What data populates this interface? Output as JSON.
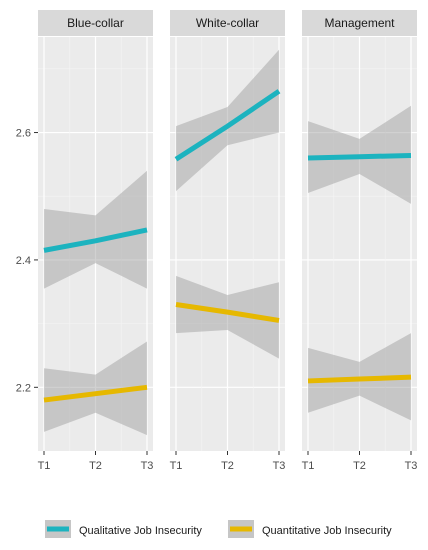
{
  "chart_data": {
    "type": "line",
    "x": [
      "T1",
      "T2",
      "T3"
    ],
    "ylim": [
      2.1,
      2.75
    ],
    "yticks": [
      2.2,
      2.4,
      2.6
    ],
    "ytick_labels": [
      "2.2",
      "2.4",
      "2.6"
    ],
    "xlabel": "",
    "ylabel": "",
    "grid": true,
    "legend_position": "bottom",
    "facets": [
      {
        "label": "Blue-collar",
        "series": [
          {
            "name": "Qualitative Job Insecurity",
            "values": [
              2.415,
              2.43,
              2.447
            ],
            "ci_lower": [
              2.355,
              2.395,
              2.355
            ],
            "ci_upper": [
              2.48,
              2.47,
              2.54
            ]
          },
          {
            "name": "Quantitative Job Insecurity",
            "values": [
              2.18,
              2.19,
              2.2
            ],
            "ci_lower": [
              2.13,
              2.16,
              2.125
            ],
            "ci_upper": [
              2.23,
              2.22,
              2.272
            ]
          }
        ]
      },
      {
        "label": "White-collar",
        "series": [
          {
            "name": "Qualitative Job Insecurity",
            "values": [
              2.558,
              2.61,
              2.665
            ],
            "ci_lower": [
              2.508,
              2.58,
              2.6
            ],
            "ci_upper": [
              2.61,
              2.64,
              2.73
            ]
          },
          {
            "name": "Quantitative Job Insecurity",
            "values": [
              2.33,
              2.318,
              2.305
            ],
            "ci_lower": [
              2.285,
              2.29,
              2.245
            ],
            "ci_upper": [
              2.375,
              2.345,
              2.365
            ]
          }
        ]
      },
      {
        "label": "Management",
        "series": [
          {
            "name": "Qualitative Job Insecurity",
            "values": [
              2.56,
              2.562,
              2.564
            ],
            "ci_lower": [
              2.505,
              2.535,
              2.488
            ],
            "ci_upper": [
              2.618,
              2.59,
              2.642
            ]
          },
          {
            "name": "Quantitative Job Insecurity",
            "values": [
              2.21,
              2.213,
              2.216
            ],
            "ci_lower": [
              2.16,
              2.187,
              2.148
            ],
            "ci_upper": [
              2.262,
              2.24,
              2.285
            ]
          }
        ]
      }
    ]
  },
  "legend": {
    "items": [
      {
        "label": "Qualitative Job Insecurity",
        "color": "#1CB3BF"
      },
      {
        "label": "Quantitative Job Insecurity",
        "color": "#E6B800"
      }
    ]
  },
  "colors": {
    "qualitative": "#1CB3BF",
    "quantitative": "#E6B800",
    "panel_background": "#EBEBEB",
    "strip_background": "#D9D9D9",
    "ribbon": "#999999"
  }
}
